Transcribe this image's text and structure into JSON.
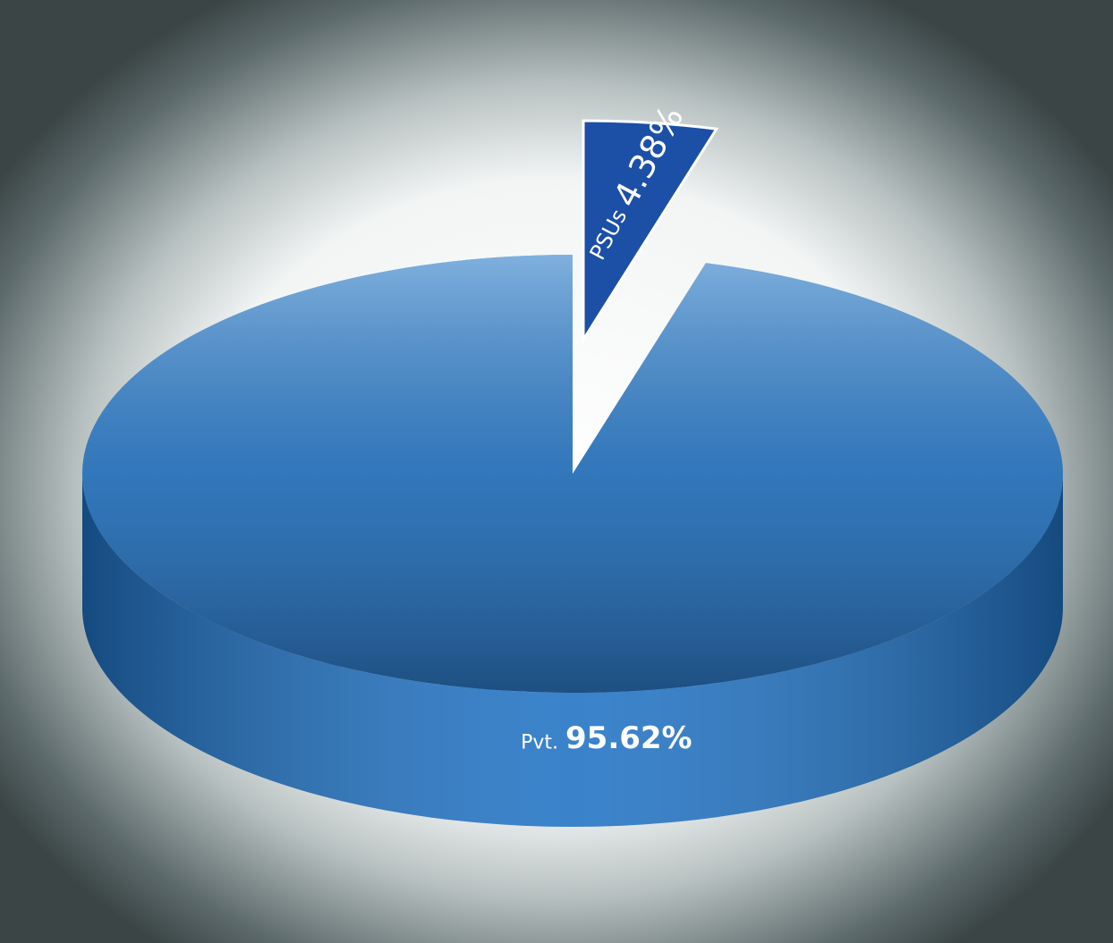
{
  "chart_data": {
    "type": "pie",
    "categories": [
      "Pvt.",
      "PSUs"
    ],
    "values": [
      95.62,
      4.38
    ],
    "value_labels": [
      "95.62%",
      "4.38%"
    ],
    "colors": [
      "#1f72c4",
      "#1c4fa6"
    ]
  }
}
